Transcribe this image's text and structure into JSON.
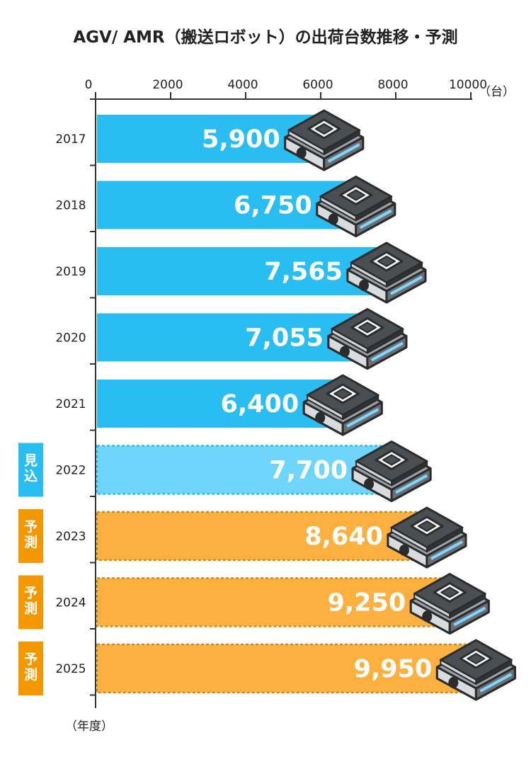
{
  "chart_data": {
    "type": "bar",
    "orientation": "horizontal",
    "title": "AGV/ AMR（搬送ロボット）の出荷台数推移・予測",
    "xlabel": "（台）",
    "ylabel": "（年度）",
    "xlim": [
      0,
      10000
    ],
    "xticks": [
      "0",
      "2000",
      "4000",
      "6000",
      "8000",
      "10000"
    ],
    "xtick_values": [
      0,
      2000,
      4000,
      6000,
      8000,
      10000
    ],
    "categories": [
      "2017",
      "2018",
      "2019",
      "2020",
      "2021",
      "2022",
      "2023",
      "2024",
      "2025"
    ],
    "values": [
      5900,
      6750,
      7565,
      7055,
      6400,
      7700,
      8640,
      9250,
      9950
    ],
    "value_labels": [
      "5,900",
      "6,750",
      "7,565",
      "7,055",
      "6,400",
      "7,700",
      "8,640",
      "9,250",
      "9,950"
    ],
    "status": [
      "actual",
      "actual",
      "actual",
      "actual",
      "actual",
      "estimate",
      "forecast",
      "forecast",
      "forecast"
    ],
    "badges": [
      "",
      "",
      "",
      "",
      "",
      "見込",
      "予測",
      "予測",
      "予測"
    ]
  },
  "colors": {
    "actual": "#29bdf2",
    "estimate": "#70d5fb",
    "estimate_border": "#29bdf2",
    "forecast": "#fbb040",
    "forecast_border": "#d08a20",
    "badge_estimate": "#29bdf2",
    "badge_forecast": "#f39800",
    "axis": "#333333"
  },
  "icon": "agv-robot-icon"
}
